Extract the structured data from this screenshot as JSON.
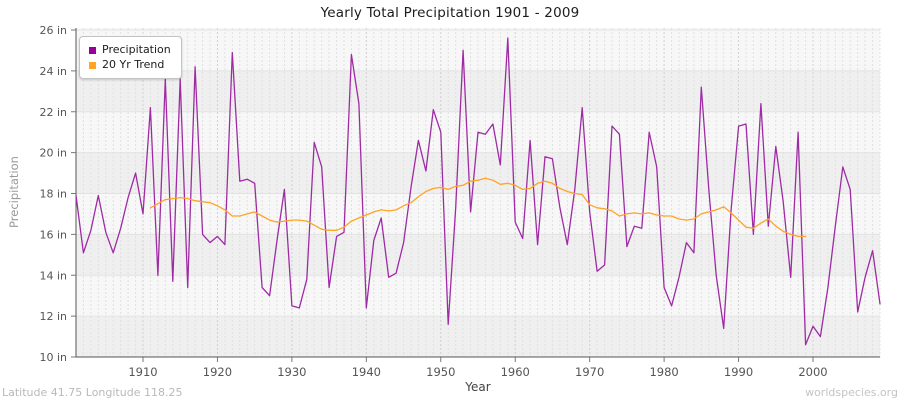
{
  "header": {
    "title": "Yearly Total Precipitation 1901 - 2009"
  },
  "legend": [
    {
      "label": "Precipitation"
    },
    {
      "label": "20 Yr Trend"
    }
  ],
  "axes": {
    "y_label": "Precipitation",
    "x_label": "Year",
    "y_ticks": [
      "26 in",
      "24 in",
      "22 in",
      "20 in",
      "18 in",
      "16 in",
      "14 in",
      "12 in",
      "10 in"
    ],
    "x_ticks": [
      "1910",
      "1920",
      "1930",
      "1940",
      "1950",
      "1960",
      "1970",
      "1980",
      "1990",
      "2000"
    ]
  },
  "footer": {
    "left": "Latitude 41.75 Longitude 118.25",
    "right": "worldspecies.org"
  },
  "chart_data": {
    "type": "line",
    "title": "Yearly Total Precipitation 1901 - 2009",
    "xlabel": "Year",
    "ylabel": "Precipitation",
    "x_range": [
      1901,
      2009
    ],
    "ylim": [
      10,
      26
    ],
    "y_tick_step": 2,
    "x_tick_step": 10,
    "y_unit": "in",
    "grid": "yearly vertical dashed lines, horizontal lines every 2 in, alternating 2-in background bands",
    "legend_position": "top-left",
    "series": [
      {
        "name": "Precipitation",
        "color": "#9e2ba4",
        "x_start": 1901,
        "values": [
          17.9,
          15.1,
          16.2,
          17.9,
          16.1,
          15.1,
          16.3,
          17.8,
          19.0,
          17.0,
          22.2,
          14.0,
          23.6,
          13.7,
          23.6,
          13.4,
          24.2,
          16.0,
          15.6,
          15.9,
          15.5,
          24.9,
          18.6,
          18.7,
          18.5,
          13.4,
          13.0,
          15.7,
          18.2,
          12.5,
          12.4,
          13.8,
          20.5,
          19.3,
          13.4,
          15.9,
          16.1,
          24.8,
          22.4,
          12.4,
          15.7,
          16.8,
          13.9,
          14.1,
          15.6,
          18.3,
          20.6,
          19.1,
          22.1,
          21.0,
          11.6,
          17.3,
          25.0,
          17.1,
          21.0,
          20.9,
          21.4,
          19.4,
          25.6,
          16.6,
          15.8,
          20.6,
          15.5,
          19.8,
          19.7,
          17.3,
          15.5,
          18.2,
          22.2,
          17.1,
          14.2,
          14.5,
          21.3,
          20.9,
          15.4,
          16.4,
          16.3,
          21.0,
          19.3,
          13.4,
          12.5,
          13.9,
          15.6,
          15.1,
          23.2,
          18.2,
          14.0,
          11.4,
          17.2,
          21.3,
          21.4,
          16.0,
          22.4,
          16.4,
          20.3,
          17.6,
          13.9,
          21.0,
          10.6,
          11.5,
          11.0,
          13.4,
          16.4,
          19.3,
          18.2,
          12.2,
          13.9,
          15.2,
          12.6
        ]
      },
      {
        "name": "20 Yr Trend",
        "color": "#ffa424",
        "x_start": 1911,
        "values": [
          17.3,
          17.5,
          17.7,
          17.75,
          17.8,
          17.75,
          17.65,
          17.6,
          17.55,
          17.4,
          17.2,
          16.9,
          16.9,
          17.0,
          17.1,
          16.9,
          16.7,
          16.6,
          16.65,
          16.7,
          16.7,
          16.65,
          16.45,
          16.25,
          16.2,
          16.2,
          16.35,
          16.65,
          16.8,
          16.95,
          17.1,
          17.2,
          17.15,
          17.2,
          17.4,
          17.55,
          17.85,
          18.1,
          18.25,
          18.3,
          18.2,
          18.35,
          18.4,
          18.6,
          18.65,
          18.75,
          18.65,
          18.45,
          18.5,
          18.4,
          18.2,
          18.25,
          18.5,
          18.6,
          18.5,
          18.25,
          18.1,
          18.0,
          17.95,
          17.45,
          17.3,
          17.25,
          17.15,
          16.9,
          17.0,
          17.05,
          17.0,
          17.05,
          16.95,
          16.9,
          16.9,
          16.75,
          16.7,
          16.75,
          17.0,
          17.1,
          17.2,
          17.35,
          17.05,
          16.7,
          16.35,
          16.3,
          16.55,
          16.75,
          16.4,
          16.15,
          16.0,
          15.9,
          15.9
        ]
      }
    ],
    "colors": {
      "band_light": "#f7f7f7",
      "band_dark": "#efefef"
    }
  }
}
